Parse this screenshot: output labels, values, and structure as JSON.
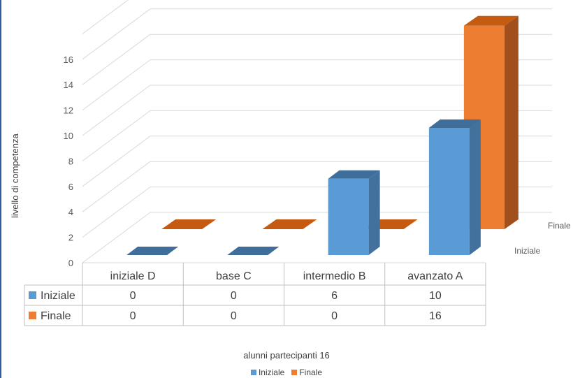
{
  "chart_data": {
    "type": "bar",
    "style": "3d-column",
    "categories": [
      "iniziale D",
      "base C",
      "intermedio B",
      "avanzato A"
    ],
    "series": [
      {
        "name": "Iniziale",
        "values": [
          0,
          0,
          6,
          10
        ],
        "color": "#5b9bd5",
        "side_color": "#41719c",
        "top_color": "#3f6e9b"
      },
      {
        "name": "Finale",
        "values": [
          0,
          0,
          0,
          16
        ],
        "color": "#ed7d31",
        "side_color": "#a04f1d",
        "top_color": "#c55a11"
      }
    ],
    "y_ticks": [
      "0",
      "2",
      "4",
      "6",
      "8",
      "10",
      "12",
      "14",
      "16"
    ],
    "ylim": [
      0,
      18
    ],
    "ylabel": "livello di competenza",
    "xlabel": "alunni partecipanti 16",
    "depth_axis_labels": [
      "Iniziale",
      "Finale"
    ],
    "grid": true,
    "legend_position": "bottom",
    "data_table": {
      "columns": [
        "iniziale D",
        "base C",
        "intermedio B",
        "avanzato A"
      ],
      "rows": [
        {
          "label": "Iniziale",
          "values": [
            "0",
            "0",
            "6",
            "10"
          ],
          "color": "#5b9bd5"
        },
        {
          "label": "Finale",
          "values": [
            "0",
            "0",
            "0",
            "16"
          ],
          "color": "#ed7d31"
        }
      ]
    }
  }
}
